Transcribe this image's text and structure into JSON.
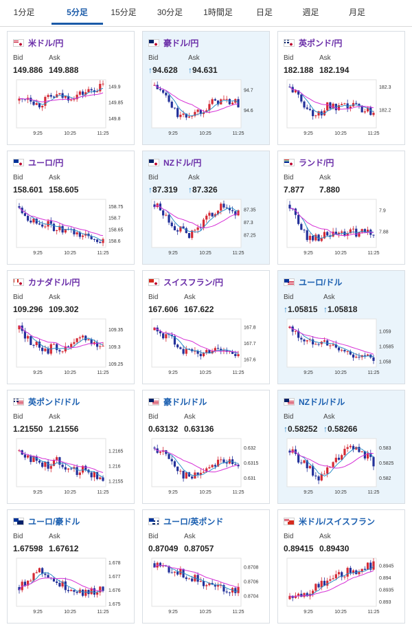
{
  "tabs": [
    "1分足",
    "5分足",
    "15分足",
    "30分足",
    "1時間足",
    "日足",
    "週足",
    "月足"
  ],
  "active_tab": 1,
  "bid_label": "Bid",
  "ask_label": "Ask",
  "pairs": [
    {
      "name": "米ドル/円",
      "bid": "149.886",
      "ask": "149.888",
      "arrow": "",
      "highlight": false,
      "color": "purple",
      "flags": [
        "us",
        "jp"
      ],
      "yticks": [
        "149.9",
        "149.85",
        "149.8"
      ],
      "ymax": 149.92,
      "ymin": 149.77,
      "trend": [
        149.855,
        149.87,
        149.84,
        149.86,
        149.87,
        149.865,
        149.87,
        149.88,
        149.89,
        149.9
      ]
    },
    {
      "name": "豪ドル/円",
      "bid": "94.628",
      "ask": "94.631",
      "arrow": "↑",
      "highlight": true,
      "color": "purple",
      "flags": [
        "au",
        "jp"
      ],
      "yticks": [
        "94.7",
        "94.6"
      ],
      "ymax": 94.75,
      "ymin": 94.51,
      "trend": [
        94.72,
        94.68,
        94.6,
        94.56,
        94.58,
        94.6,
        94.63,
        94.65,
        94.64,
        94.63
      ]
    },
    {
      "name": "英ポンド/円",
      "bid": "182.188",
      "ask": "182.194",
      "arrow": "",
      "highlight": false,
      "color": "purple",
      "flags": [
        "gb",
        "jp"
      ],
      "yticks": [
        "182.3",
        "182.2"
      ],
      "ymax": 182.33,
      "ymin": 182.12,
      "trend": [
        182.3,
        182.25,
        182.2,
        182.17,
        182.22,
        182.2,
        182.21,
        182.22,
        182.2,
        182.19
      ]
    },
    {
      "name": "ユーロ/円",
      "bid": "158.601",
      "ask": "158.605",
      "arrow": "",
      "highlight": false,
      "color": "purple",
      "flags": [
        "eu",
        "jp"
      ],
      "yticks": [
        "158.75",
        "158.7",
        "158.65",
        "158.6"
      ],
      "ymax": 158.78,
      "ymin": 158.57,
      "trend": [
        158.75,
        158.7,
        158.68,
        158.67,
        158.65,
        158.64,
        158.63,
        158.62,
        158.61,
        158.6
      ]
    },
    {
      "name": "NZドル/円",
      "bid": "87.319",
      "ask": "87.326",
      "arrow": "↑",
      "highlight": true,
      "color": "purple",
      "flags": [
        "nz",
        "jp"
      ],
      "yticks": [
        "87.35",
        "87.3",
        "87.25"
      ],
      "ymax": 87.39,
      "ymin": 87.2,
      "trend": [
        87.37,
        87.33,
        87.29,
        87.26,
        87.25,
        87.29,
        87.33,
        87.36,
        87.35,
        87.33
      ]
    },
    {
      "name": "ランド/円",
      "bid": "7.877",
      "ask": "7.880",
      "arrow": "",
      "highlight": false,
      "color": "purple",
      "flags": [
        "za",
        "jp"
      ],
      "yticks": [
        "7.9",
        "7.88"
      ],
      "ymax": 7.91,
      "ymin": 7.865,
      "trend": [
        7.905,
        7.885,
        7.874,
        7.875,
        7.876,
        7.877,
        7.878,
        7.879,
        7.879,
        7.878
      ]
    },
    {
      "name": "カナダドル/円",
      "bid": "109.296",
      "ask": "109.302",
      "arrow": "",
      "highlight": false,
      "color": "purple",
      "flags": [
        "ca",
        "jp"
      ],
      "yticks": [
        "109.35",
        "109.3",
        "109.25"
      ],
      "ymax": 109.38,
      "ymin": 109.24,
      "trend": [
        109.35,
        109.32,
        109.3,
        109.29,
        109.3,
        109.29,
        109.31,
        109.33,
        109.31,
        109.3
      ]
    },
    {
      "name": "スイスフラン/円",
      "bid": "167.606",
      "ask": "167.622",
      "arrow": "",
      "highlight": false,
      "color": "purple",
      "flags": [
        "ch",
        "jp"
      ],
      "yticks": [
        "167.8",
        "167.7",
        "167.6"
      ],
      "ymax": 167.85,
      "ymin": 167.55,
      "trend": [
        167.78,
        167.75,
        167.72,
        167.66,
        167.64,
        167.63,
        167.66,
        167.67,
        167.64,
        167.61
      ]
    },
    {
      "name": "ユーロ/ドル",
      "bid": "1.05815",
      "ask": "1.05818",
      "arrow": "↑",
      "highlight": true,
      "color": "blue",
      "flags": [
        "eu",
        "us"
      ],
      "yticks": [
        "1.059",
        "1.0585",
        "1.058"
      ],
      "ymax": 1.0594,
      "ymin": 1.0578,
      "trend": [
        1.0591,
        1.0588,
        1.0586,
        1.0587,
        1.0586,
        1.0584,
        1.0583,
        1.0582,
        1.0581,
        1.0581
      ]
    },
    {
      "name": "英ポンド/ドル",
      "bid": "1.21550",
      "ask": "1.21556",
      "arrow": "",
      "highlight": false,
      "color": "blue",
      "flags": [
        "gb",
        "us"
      ],
      "yticks": [
        "1.2165",
        "1.216",
        "1.2155"
      ],
      "ymax": 1.2169,
      "ymin": 1.2153,
      "trend": [
        1.2165,
        1.2163,
        1.2161,
        1.216,
        1.2162,
        1.216,
        1.2158,
        1.2159,
        1.2157,
        1.2155
      ]
    },
    {
      "name": "豪ドル/ドル",
      "bid": "0.63132",
      "ask": "0.63136",
      "arrow": "",
      "highlight": false,
      "color": "blue",
      "flags": [
        "au",
        "us"
      ],
      "yticks": [
        "0.632",
        "0.6315",
        "0.631"
      ],
      "ymax": 0.6323,
      "ymin": 0.6307,
      "trend": [
        0.632,
        0.6318,
        0.6315,
        0.6311,
        0.631,
        0.6312,
        0.6314,
        0.6316,
        0.6315,
        0.6313
      ]
    },
    {
      "name": "NZドル/ドル",
      "bid": "0.58252",
      "ask": "0.58266",
      "arrow": "↑",
      "highlight": true,
      "color": "blue",
      "flags": [
        "nz",
        "us"
      ],
      "yticks": [
        "0.583",
        "0.5825",
        "0.582"
      ],
      "ymax": 0.5833,
      "ymin": 0.5817,
      "trend": [
        0.5829,
        0.5826,
        0.5823,
        0.582,
        0.5822,
        0.5826,
        0.5829,
        0.583,
        0.5828,
        0.5825
      ]
    },
    {
      "name": "ユーロ/豪ドル",
      "bid": "1.67598",
      "ask": "1.67612",
      "arrow": "",
      "highlight": false,
      "color": "blue",
      "flags": [
        "eu",
        "au"
      ],
      "yticks": [
        "1.678",
        "1.677",
        "1.676",
        "1.675"
      ],
      "ymax": 1.6783,
      "ymin": 1.6748,
      "trend": [
        1.6762,
        1.6768,
        1.6775,
        1.6772,
        1.6765,
        1.6762,
        1.676,
        1.6758,
        1.6759,
        1.676
      ]
    },
    {
      "name": "ユーロ/英ポンド",
      "bid": "0.87049",
      "ask": "0.87057",
      "arrow": "",
      "highlight": false,
      "color": "blue",
      "flags": [
        "eu",
        "gb"
      ],
      "yticks": [
        "0.8708",
        "0.8706",
        "0.8704"
      ],
      "ymax": 0.87092,
      "ymin": 0.87025,
      "trend": [
        0.87085,
        0.8708,
        0.87075,
        0.8707,
        0.87065,
        0.8706,
        0.87055,
        0.8705,
        0.87048,
        0.8705
      ]
    },
    {
      "name": "米ドル/スイスフラン",
      "bid": "0.89415",
      "ask": "0.89430",
      "arrow": "",
      "highlight": false,
      "color": "blue",
      "flags": [
        "us",
        "ch"
      ],
      "yticks": [
        "0.8945",
        "0.894",
        "0.8935",
        "0.893"
      ],
      "ymax": 0.8948,
      "ymin": 0.8928,
      "trend": [
        0.8931,
        0.8932,
        0.8934,
        0.8937,
        0.8938,
        0.894,
        0.8942,
        0.8943,
        0.8944,
        0.8945
      ]
    }
  ],
  "xticks": [
    "9:25",
    "10:25",
    "11:25"
  ],
  "colors": {
    "up": "#d42a35",
    "down": "#23319a",
    "ma_fast": "#2b8fc7",
    "ma_slow": "#d62fd6",
    "accent": "#1a5aa8"
  }
}
